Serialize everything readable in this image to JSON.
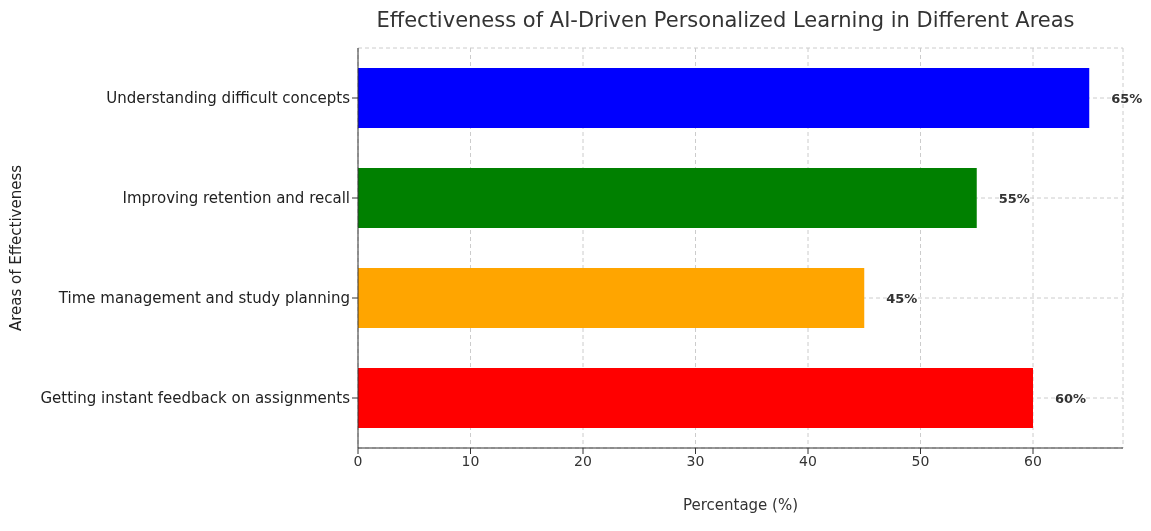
{
  "chart_data": {
    "type": "bar",
    "orientation": "horizontal",
    "title": "Effectiveness of AI-Driven Personalized Learning in Different Areas",
    "xlabel": "Percentage (%)",
    "ylabel": "Areas of Effectiveness",
    "categories": [
      "Understanding difficult concepts",
      "Improving retention and recall",
      "Time management and study planning",
      "Getting instant feedback on assignments"
    ],
    "values": [
      65,
      55,
      45,
      60
    ],
    "colors": [
      "#0000ff",
      "#008000",
      "#ffa500",
      "#ff0000"
    ],
    "value_labels": [
      "65%",
      "55%",
      "45%",
      "60%"
    ],
    "xlim": [
      0,
      68
    ],
    "xticks": [
      0,
      10,
      20,
      30,
      40,
      50,
      60
    ],
    "grid": true
  }
}
